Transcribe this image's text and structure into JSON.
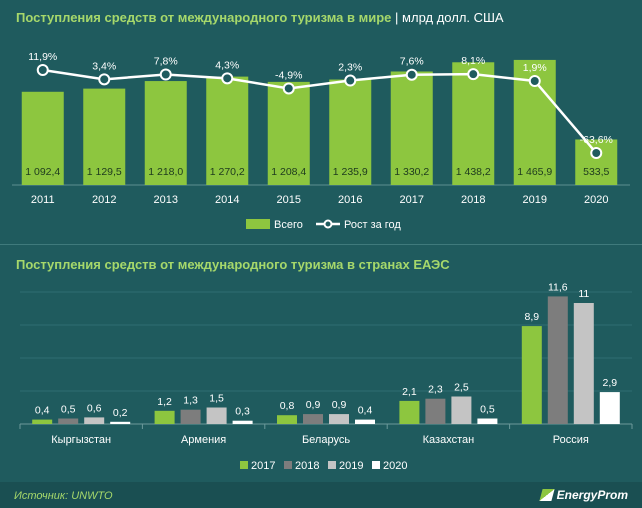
{
  "chart_data": [
    {
      "type": "bar",
      "title": "Поступления средств от международного туризма в мире",
      "unit": "млрд долл. США",
      "categories": [
        "2011",
        "2012",
        "2013",
        "2014",
        "2015",
        "2016",
        "2017",
        "2018",
        "2019",
        "2020"
      ],
      "series": [
        {
          "name": "Всего",
          "type": "bar",
          "color": "#8dc63f",
          "values": [
            1092.4,
            1129.5,
            1218.0,
            1270.2,
            1208.4,
            1235.9,
            1330.2,
            1438.2,
            1465.9,
            533.5
          ],
          "labels": [
            "1 092,4",
            "1 129,5",
            "1 218,0",
            "1 270,2",
            "1 208,4",
            "1 235,9",
            "1 330,2",
            "1 438,2",
            "1 465,9",
            "533,5"
          ]
        },
        {
          "name": "Рост за год",
          "type": "line",
          "color": "#ffffff",
          "values": [
            11.9,
            3.4,
            7.8,
            4.3,
            -4.9,
            2.3,
            7.6,
            8.1,
            1.9,
            -63.6
          ],
          "labels": [
            "11,9%",
            "3,4%",
            "7,8%",
            "4,3%",
            "-4,9%",
            "2,3%",
            "7,6%",
            "8,1%",
            "1,9%",
            "-63,6%"
          ]
        }
      ],
      "legend": "bottom",
      "grid": false
    },
    {
      "type": "bar",
      "title": "Поступления средств от международного туризма в странах ЕАЭС",
      "categories": [
        "Кыргызстан",
        "Армения",
        "Беларусь",
        "Казахстан",
        "Россия"
      ],
      "series": [
        {
          "name": "2017",
          "color": "#8dc63f",
          "values": [
            0.4,
            1.2,
            0.8,
            2.1,
            8.9
          ],
          "labels": [
            "0,4",
            "1,2",
            "0,8",
            "2,1",
            "8,9"
          ]
        },
        {
          "name": "2018",
          "color": "#7d7d7d",
          "values": [
            0.5,
            1.3,
            0.9,
            2.3,
            11.6
          ],
          "labels": [
            "0,5",
            "1,3",
            "0,9",
            "2,3",
            "11,6"
          ]
        },
        {
          "name": "2019",
          "color": "#c4c4c4",
          "values": [
            0.6,
            1.5,
            0.9,
            2.5,
            11
          ],
          "labels": [
            "0,6",
            "1,5",
            "0,9",
            "2,5",
            "11"
          ]
        },
        {
          "name": "2020",
          "color": "#ffffff",
          "values": [
            0.2,
            0.3,
            0.4,
            0.5,
            2.9
          ],
          "labels": [
            "0,2",
            "0,3",
            "0,4",
            "0,5",
            "2,9"
          ]
        }
      ],
      "legend": "bottom",
      "grid": true
    }
  ],
  "footer": {
    "source": "Источник: UNWTO",
    "brand": "EnergyProm"
  }
}
